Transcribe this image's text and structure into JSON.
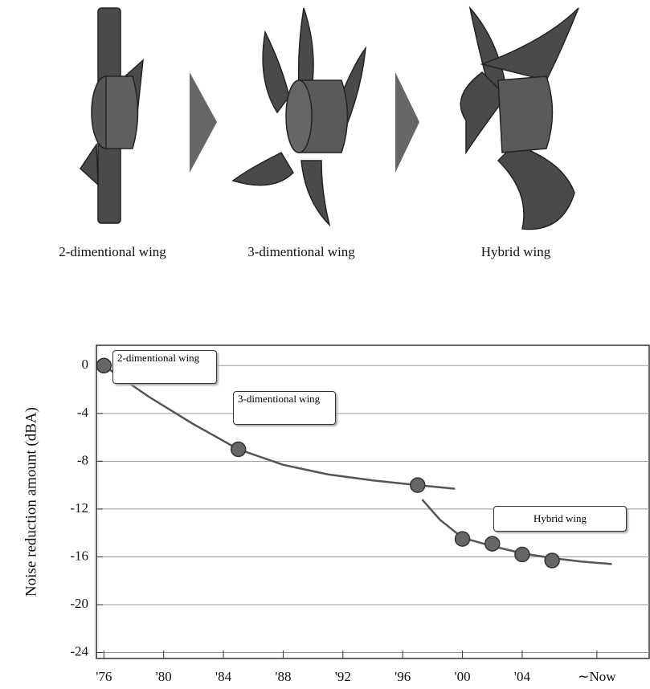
{
  "illustration": {
    "labels": [
      "2-dimentional wing",
      "3-dimentional wing",
      "Hybrid wing"
    ]
  },
  "chart_data": {
    "type": "line",
    "y_label": "Noise reduction amount (dBA)",
    "x": [
      1976,
      1985,
      1997,
      2000,
      2002,
      2004,
      2006
    ],
    "values": [
      0,
      -7,
      -10,
      -14.5,
      -14.9,
      -15.8,
      -16.3
    ],
    "color": "#666666",
    "curves": [
      {
        "x": [
          1976,
          1979,
          1982,
          1985,
          1988,
          1991,
          1994,
          1997,
          1999.5
        ],
        "values": [
          0,
          -2.6,
          -4.9,
          -7,
          -8.3,
          -9.1,
          -9.6,
          -10,
          -10.3
        ]
      },
      {
        "x": [
          1997.3,
          1998.5,
          2000,
          2002,
          2004,
          2006,
          2008,
          2010
        ],
        "values": [
          -11.2,
          -12.9,
          -14.4,
          -15.1,
          -15.7,
          -16.1,
          -16.4,
          -16.6
        ]
      }
    ],
    "curve_color": "#555555",
    "annotations": [
      "2-dimentional wing",
      "3-dimentional wing",
      "Hybrid wing"
    ],
    "xlim": [
      1975.5,
      2012.5
    ],
    "ylim": [
      -24.5,
      1.7
    ],
    "xticks": [
      {
        "value": 1976,
        "label": "'76"
      },
      {
        "value": 1980,
        "label": "'80"
      },
      {
        "value": 1984,
        "label": "'84"
      },
      {
        "value": 1988,
        "label": "'88"
      },
      {
        "value": 1992,
        "label": "'92"
      },
      {
        "value": 1996,
        "label": "'96"
      },
      {
        "value": 2000,
        "label": "'00"
      },
      {
        "value": 2004,
        "label": "'04"
      },
      {
        "value": 2009,
        "label": "∼Now"
      }
    ],
    "yticks": [
      0,
      -4,
      -8,
      -12,
      -16,
      -20,
      -24
    ],
    "grid": true
  }
}
